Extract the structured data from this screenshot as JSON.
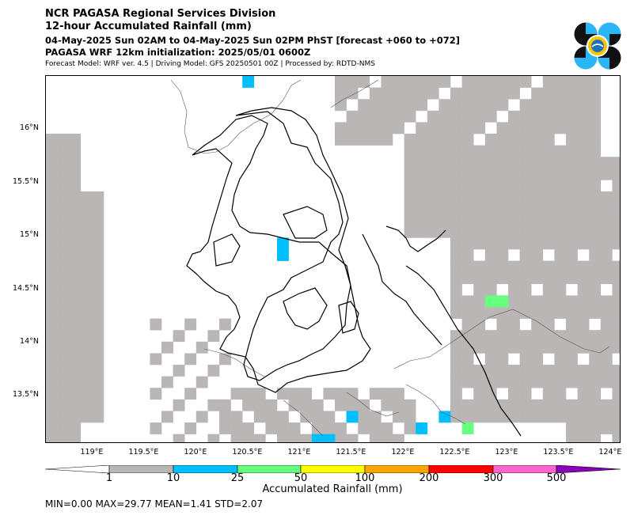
{
  "header": {
    "line1": "NCR PAGASA Regional Services Division",
    "line2": "12-hour Accumulated Rainfall (mm)",
    "line3": "04-May-2025 Sun 02AM to 04-May-2025 Sun 02PM PhST [forecast +060 to +072]",
    "line4": "PAGASA WRF 12km initialization: 2025/05/01 0600Z",
    "line5": "Forecast Model: WRF ver. 4.5 | Driving Model: GFS 20250501 00Z | Processed by: RDTD-NMS"
  },
  "map": {
    "lat_labels": [
      "16°N",
      "15.5°N",
      "15°N",
      "14.5°N",
      "14°N",
      "13.5°N"
    ],
    "lon_labels": [
      "119°E",
      "119.5°E",
      "120°E",
      "120.5°E",
      "121°E",
      "121.5°E",
      "122°E",
      "122.5°E",
      "123°E",
      "123.5°E",
      "124°E"
    ],
    "lat_range": [
      13.05,
      16.5
    ],
    "lon_range": [
      118.55,
      124.1
    ]
  },
  "colorbar": {
    "title": "Accumulated Rainfall (mm)",
    "labels": [
      "1",
      "10",
      "25",
      "50",
      "100",
      "200",
      "300",
      "500"
    ],
    "colors": [
      "#ffffff",
      "#bab6b6",
      "#00bfff",
      "#66ff80",
      "#ffff00",
      "#ffa500",
      "#ff0000",
      "#ff66cc",
      "#8a00b8"
    ]
  },
  "stats": {
    "text": "MIN=0.00   MAX=29.77   MEAN=1.41   STD=2.07"
  },
  "icons": {
    "logo": "pagasa-logo-icon"
  }
}
